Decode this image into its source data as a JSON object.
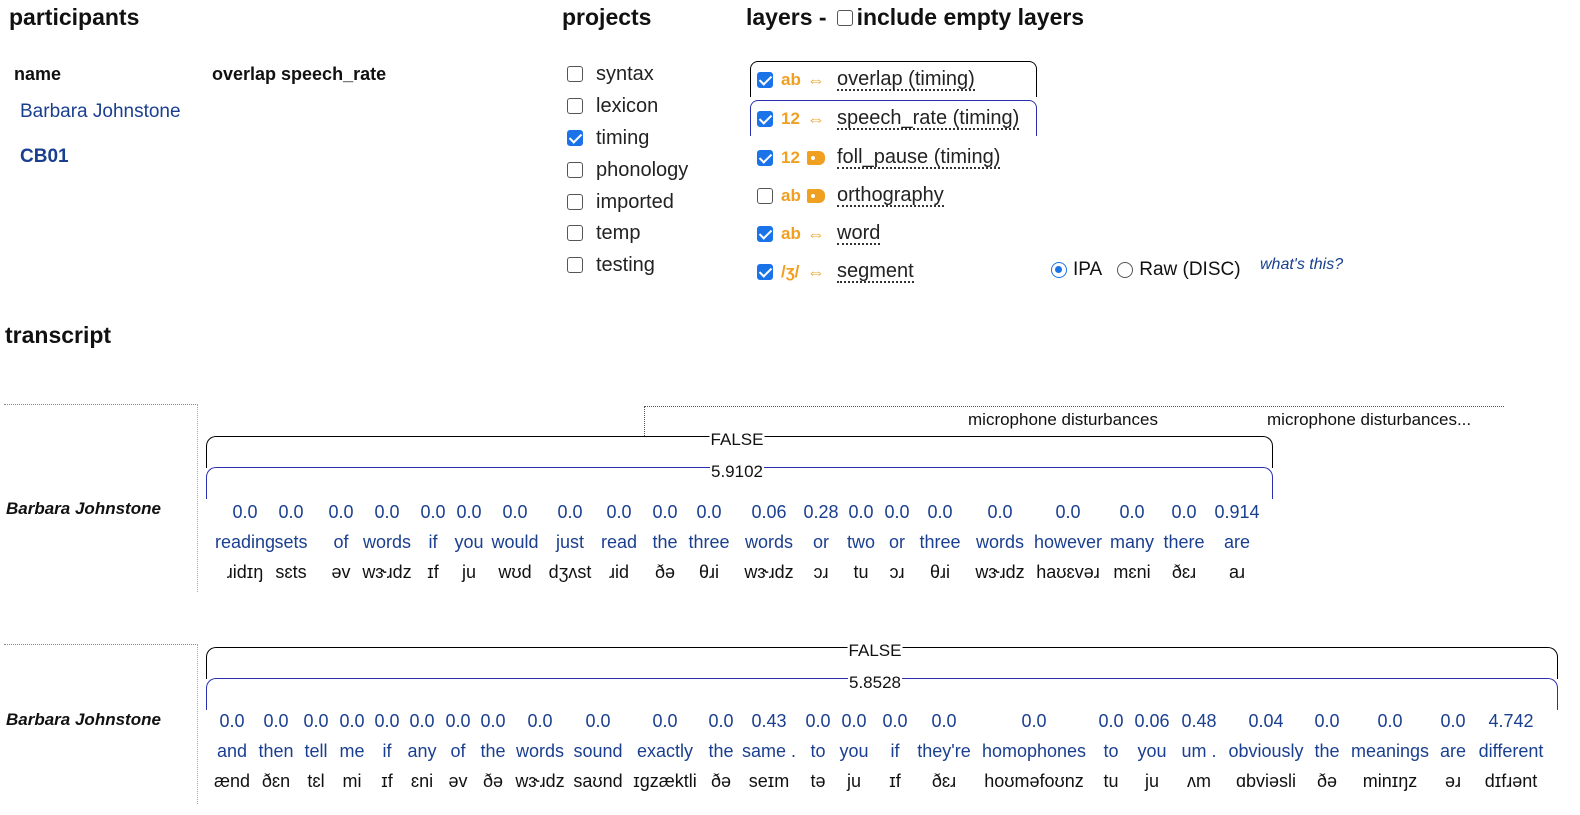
{
  "participants": {
    "title": "participants",
    "col_name": "name",
    "col_attrs": "overlap speech_rate",
    "participant_name": "Barbara Johnstone",
    "participant_id": "CB01"
  },
  "projects": {
    "title": "projects",
    "items": [
      {
        "label": "syntax",
        "checked": false
      },
      {
        "label": "lexicon",
        "checked": false
      },
      {
        "label": "timing",
        "checked": true
      },
      {
        "label": "phonology",
        "checked": false
      },
      {
        "label": "imported",
        "checked": false
      },
      {
        "label": "temp",
        "checked": false
      },
      {
        "label": "testing",
        "checked": false
      }
    ]
  },
  "layers": {
    "title": "layers -",
    "include_empty_label": "include empty layers",
    "include_empty_checked": false,
    "items": [
      {
        "type": "ab",
        "icon": "span-arrows-icon",
        "label": "overlap (timing)",
        "checked": true
      },
      {
        "type": "12",
        "icon": "span-arrows-icon",
        "label": "speech_rate (timing)",
        "checked": true
      },
      {
        "type": "12",
        "icon": "tag-icon",
        "label": "foll_pause (timing)",
        "checked": true
      },
      {
        "type": "ab",
        "icon": "tag-icon",
        "label": "orthography",
        "checked": false
      },
      {
        "type": "ab",
        "icon": "span-arrows-icon",
        "label": "word",
        "checked": true
      },
      {
        "type": "/ʒ/",
        "icon": "span-arrows-icon",
        "label": "segment",
        "checked": true
      }
    ],
    "phon_ipa": "IPA",
    "phon_raw": "Raw (DISC)",
    "phon_selected": "IPA",
    "whats_this": "what's this?"
  },
  "transcript": {
    "title": "transcript",
    "lines": [
      {
        "speaker": "Barbara Johnstone",
        "noise_labels": [
          "microphone disturbances",
          "microphone disturbances..."
        ],
        "overlap": "FALSE",
        "speech_rate": "5.9102",
        "tokens": [
          {
            "pause": "0.0",
            "word": "reading",
            "ipa": "ɹidɪŋ"
          },
          {
            "pause": "0.0",
            "word": "sets",
            "ipa": "sɛts"
          },
          {
            "pause": "0.0",
            "word": "of",
            "ipa": "əv"
          },
          {
            "pause": "0.0",
            "word": "words",
            "ipa": "wɝɹdz"
          },
          {
            "pause": "0.0",
            "word": "if",
            "ipa": "ɪf"
          },
          {
            "pause": "0.0",
            "word": "you",
            "ipa": "ju"
          },
          {
            "pause": "0.0",
            "word": "would",
            "ipa": "wʊd"
          },
          {
            "pause": "0.0",
            "word": "just",
            "ipa": "dʒʌst"
          },
          {
            "pause": "0.0",
            "word": "read",
            "ipa": "ɹid"
          },
          {
            "pause": "0.0",
            "word": "the",
            "ipa": "ðə"
          },
          {
            "pause": "0.0",
            "word": "three",
            "ipa": "θɹi"
          },
          {
            "pause": "0.06",
            "word": "words",
            "ipa": "wɝɹdz"
          },
          {
            "pause": "0.28",
            "word": "or",
            "ipa": "ɔɹ"
          },
          {
            "pause": "0.0",
            "word": "two",
            "ipa": "tu"
          },
          {
            "pause": "0.0",
            "word": "or",
            "ipa": "ɔɹ"
          },
          {
            "pause": "0.0",
            "word": "three",
            "ipa": "θɹi"
          },
          {
            "pause": "0.0",
            "word": "words",
            "ipa": "wɝɹdz"
          },
          {
            "pause": "0.0",
            "word": "however",
            "ipa": "haʊɛvəɹ"
          },
          {
            "pause": "0.0",
            "word": "many",
            "ipa": "mɛni"
          },
          {
            "pause": "0.0",
            "word": "there",
            "ipa": "ðɛɹ"
          },
          {
            "pause": "0.914",
            "word": "are",
            "ipa": "aɹ"
          }
        ]
      },
      {
        "speaker": "Barbara Johnstone",
        "overlap": "FALSE",
        "speech_rate": "5.8528",
        "tokens": [
          {
            "pause": "0.0",
            "word": "and",
            "ipa": "ænd"
          },
          {
            "pause": "0.0",
            "word": "then",
            "ipa": "ðɛn"
          },
          {
            "pause": "0.0",
            "word": "tell",
            "ipa": "tɛl"
          },
          {
            "pause": "0.0",
            "word": "me",
            "ipa": "mi"
          },
          {
            "pause": "0.0",
            "word": "if",
            "ipa": "ɪf"
          },
          {
            "pause": "0.0",
            "word": "any",
            "ipa": "ɛni"
          },
          {
            "pause": "0.0",
            "word": "of",
            "ipa": "əv"
          },
          {
            "pause": "0.0",
            "word": "the",
            "ipa": "ðə"
          },
          {
            "pause": "0.0",
            "word": "words",
            "ipa": "wɝɹdz"
          },
          {
            "pause": "0.0",
            "word": "sound",
            "ipa": "saʊnd"
          },
          {
            "pause": "0.0",
            "word": "exactly",
            "ipa": "ɪgzæktli"
          },
          {
            "pause": "0.0",
            "word": "the",
            "ipa": "ðə"
          },
          {
            "pause": "0.43",
            "word": "same .",
            "ipa": "seɪm"
          },
          {
            "pause": "0.0",
            "word": "to",
            "ipa": "tə"
          },
          {
            "pause": "0.0",
            "word": "you",
            "ipa": "ju"
          },
          {
            "pause": "0.0",
            "word": "if",
            "ipa": "ɪf"
          },
          {
            "pause": "0.0",
            "word": "they're",
            "ipa": "ðɛɹ"
          },
          {
            "pause": "0.0",
            "word": "homophones",
            "ipa": "hoʊməfoʊnz"
          },
          {
            "pause": "0.0",
            "word": "to",
            "ipa": "tu"
          },
          {
            "pause": "0.06",
            "word": "you",
            "ipa": "ju"
          },
          {
            "pause": "0.48",
            "word": "um .",
            "ipa": "ʌm"
          },
          {
            "pause": "0.04",
            "word": "obviously",
            "ipa": "ɑbviəsli"
          },
          {
            "pause": "0.0",
            "word": "the",
            "ipa": "ðə"
          },
          {
            "pause": "0.0",
            "word": "meanings",
            "ipa": "minɪŋz"
          },
          {
            "pause": "0.0",
            "word": "are",
            "ipa": "əɹ"
          },
          {
            "pause": "4.742",
            "word": "different",
            "ipa": "dɪfɹənt"
          }
        ]
      }
    ]
  }
}
